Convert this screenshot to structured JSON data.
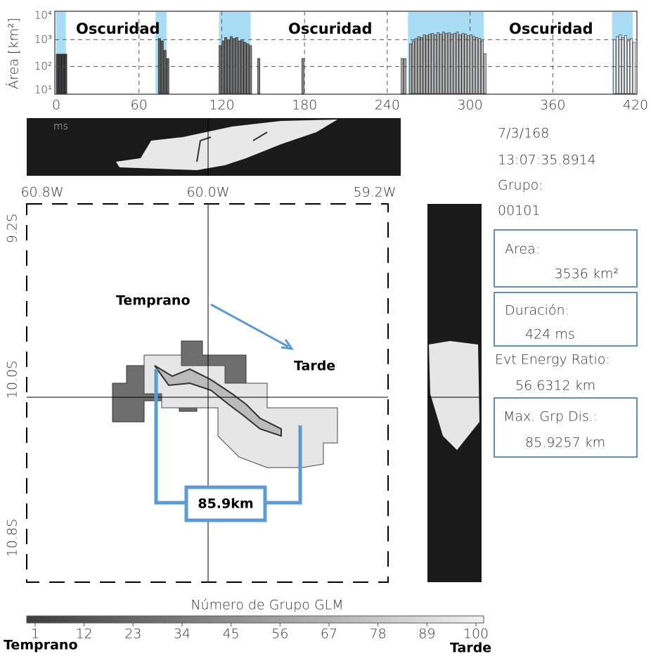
{
  "chart_data": {
    "type": "bar",
    "y_label": "Área [km²]",
    "x_unit": "ms",
    "x": [
      0,
      2,
      4,
      6,
      74,
      76,
      78,
      80,
      118,
      120,
      122,
      124,
      126,
      128,
      130,
      132,
      134,
      136,
      138,
      140,
      146,
      178,
      250,
      252,
      256,
      258,
      260,
      262,
      264,
      266,
      268,
      270,
      272,
      274,
      276,
      278,
      280,
      282,
      284,
      286,
      288,
      290,
      292,
      294,
      296,
      298,
      300,
      302,
      304,
      306,
      308,
      310,
      404,
      406,
      408,
      410,
      412,
      414,
      416,
      418
    ],
    "values": [
      290,
      290,
      290,
      290,
      1100,
      900,
      400,
      200,
      600,
      900,
      1200,
      1000,
      1300,
      1100,
      1200,
      900,
      1000,
      800,
      700,
      600,
      200,
      200,
      200,
      200,
      700,
      900,
      1100,
      1300,
      1200,
      1500,
      1400,
      1600,
      1700,
      1500,
      1800,
      1600,
      1900,
      1700,
      1800,
      1600,
      1700,
      1900,
      1500,
      1700,
      1600,
      1400,
      1500,
      1300,
      1200,
      1100,
      900,
      300,
      1000,
      1300,
      1500,
      1200,
      1400,
      900,
      1100,
      800
    ],
    "xlim": [
      0,
      420
    ],
    "xticks": [
      0,
      60,
      120,
      180,
      240,
      300,
      360,
      420
    ],
    "ylim": [
      10,
      10000
    ],
    "log_scale": true,
    "yticks": [
      {
        "value": 10,
        "label": "10¹"
      },
      {
        "value": 100,
        "label": "10²"
      },
      {
        "value": 1000,
        "label": "10³"
      },
      {
        "value": 10000,
        "label": "10⁴"
      }
    ],
    "grid": true,
    "shaded_spans": [
      [
        0,
        7
      ],
      [
        72,
        80
      ],
      [
        118,
        141
      ],
      [
        255,
        310
      ],
      [
        403,
        418
      ]
    ],
    "shade_color": "#a9ddf5",
    "bar_colors": [
      "#3c3c3c",
      "#f2f2f2"
    ],
    "annotations": [
      "Oscuridad",
      "Oscuridad",
      "Oscuridad"
    ]
  },
  "map": {
    "lon_labels": [
      "60.8W",
      "60.0W",
      "59.2W"
    ],
    "lat_labels": [
      "9.2S",
      "10.0S",
      "10.8S"
    ],
    "early": "Temprano",
    "late": "Tarde",
    "distance": "85.9km"
  },
  "info": {
    "date": "7/3/168",
    "time": "13:07:35.8914",
    "group_label": "Grupo:",
    "group": "00101",
    "area_label": "Area:",
    "area": "3536 km²",
    "duration_label": "Duración:",
    "duration": "424 ms",
    "energy_label": "Evt Energy Ratio:",
    "energy": "56.6312 km",
    "max_label": "Max. Grp Dis.:",
    "max": "85.9257 km"
  },
  "colorbar": {
    "label": "Número de Grupo GLM",
    "ticks": [
      1,
      12,
      23,
      34,
      45,
      56,
      67,
      78,
      89,
      100
    ],
    "lim": [
      1,
      100
    ],
    "colors": [
      "#3c3c3c",
      "#f2f2f2"
    ],
    "start_label": "Temprano",
    "end_label": "Tarde"
  }
}
